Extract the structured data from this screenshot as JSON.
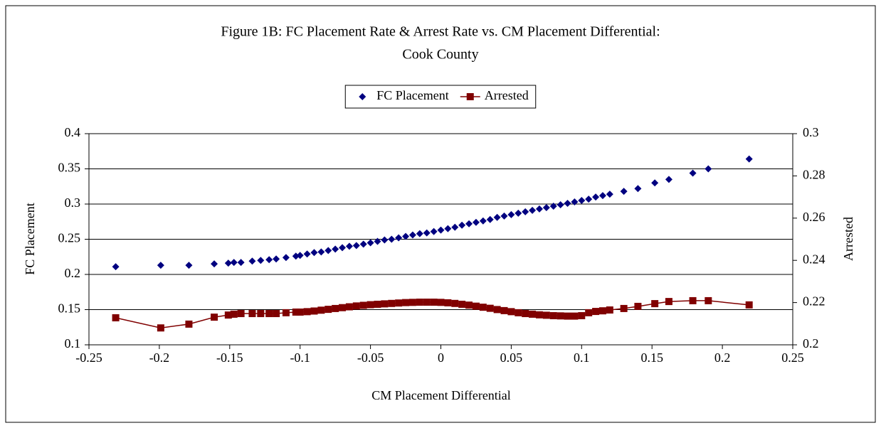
{
  "chart_data": {
    "type": "scatter",
    "title": "Figure 1B:  FC Placement Rate & Arrest Rate vs. CM Placement Differential:",
    "subtitle": "Cook County",
    "x_label": "CM Placement Differential",
    "y_label": "FC Placement",
    "y2_label": "Arrested",
    "x": [
      -0.231,
      -0.199,
      -0.179,
      -0.161,
      -0.151,
      -0.147,
      -0.142,
      -0.134,
      -0.128,
      -0.122,
      -0.117,
      -0.11,
      -0.103,
      -0.1,
      -0.095,
      -0.09,
      -0.085,
      -0.08,
      -0.075,
      -0.07,
      -0.065,
      -0.06,
      -0.055,
      -0.05,
      -0.045,
      -0.04,
      -0.035,
      -0.03,
      -0.025,
      -0.02,
      -0.015,
      -0.01,
      -0.005,
      0,
      0.005,
      0.01,
      0.015,
      0.02,
      0.025,
      0.03,
      0.035,
      0.04,
      0.045,
      0.05,
      0.055,
      0.06,
      0.065,
      0.07,
      0.075,
      0.08,
      0.085,
      0.09,
      0.095,
      0.1,
      0.105,
      0.11,
      0.115,
      0.12,
      0.13,
      0.14,
      0.152,
      0.162,
      0.179,
      0.19,
      0.219
    ],
    "series": [
      {
        "name": "FC Placement",
        "color": "#000080",
        "marker": "diamond",
        "line": false,
        "axis": "y",
        "values": [
          0.211,
          0.213,
          0.213,
          0.215,
          0.216,
          0.217,
          0.217,
          0.219,
          0.22,
          0.221,
          0.222,
          0.224,
          0.226,
          0.227,
          0.229,
          0.231,
          0.232,
          0.234,
          0.236,
          0.238,
          0.24,
          0.241,
          0.243,
          0.245,
          0.247,
          0.249,
          0.25,
          0.252,
          0.254,
          0.256,
          0.258,
          0.259,
          0.261,
          0.263,
          0.265,
          0.267,
          0.27,
          0.272,
          0.274,
          0.276,
          0.278,
          0.281,
          0.283,
          0.285,
          0.287,
          0.289,
          0.291,
          0.293,
          0.295,
          0.297,
          0.299,
          0.301,
          0.303,
          0.305,
          0.307,
          0.31,
          0.312,
          0.314,
          0.318,
          0.322,
          0.33,
          0.335,
          0.344,
          0.35,
          0.364
        ]
      },
      {
        "name": "Arrested",
        "color": "#800000",
        "marker": "square",
        "line": true,
        "axis": "y2",
        "values": [
          0.2128,
          0.208,
          0.2098,
          0.2131,
          0.2141,
          0.2145,
          0.2148,
          0.2148,
          0.2148,
          0.2148,
          0.2148,
          0.2152,
          0.2155,
          0.2155,
          0.2157,
          0.216,
          0.2164,
          0.2168,
          0.2172,
          0.2176,
          0.218,
          0.2184,
          0.2187,
          0.219,
          0.2192,
          0.2194,
          0.2196,
          0.2198,
          0.22,
          0.2201,
          0.2202,
          0.2202,
          0.2202,
          0.2201,
          0.2199,
          0.2196,
          0.2192,
          0.2188,
          0.2183,
          0.2178,
          0.2173,
          0.2167,
          0.2162,
          0.2157,
          0.2152,
          0.2148,
          0.2145,
          0.2142,
          0.214,
          0.2138,
          0.2137,
          0.2136,
          0.2136,
          0.2138,
          0.2152,
          0.2158,
          0.2161,
          0.2165,
          0.2172,
          0.2182,
          0.2195,
          0.2205,
          0.2209,
          0.2209,
          0.2189
        ]
      }
    ],
    "xlim": [
      -0.25,
      0.25
    ],
    "xticks": [
      -0.25,
      -0.2,
      -0.15,
      -0.1,
      -0.05,
      0,
      0.05,
      0.1,
      0.15,
      0.2,
      0.25
    ],
    "ylim": [
      0.1,
      0.4
    ],
    "yticks": [
      0.1,
      0.15,
      0.2,
      0.25,
      0.3,
      0.35,
      0.4
    ],
    "y2lim": [
      0.2,
      0.3
    ],
    "y2ticks": [
      0.2,
      0.22,
      0.24,
      0.26,
      0.28,
      0.3
    ],
    "grid": true,
    "legend": "top"
  }
}
